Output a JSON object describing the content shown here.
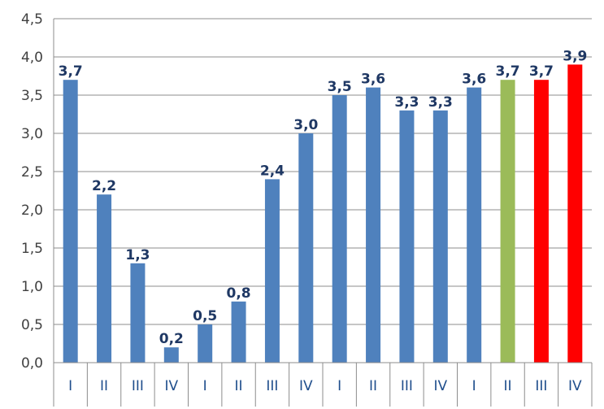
{
  "chart_data": {
    "type": "bar",
    "categories": [
      "I",
      "II",
      "III",
      "IV",
      "I",
      "II",
      "III",
      "IV",
      "I",
      "II",
      "III",
      "IV",
      "I",
      "II",
      "III",
      "IV"
    ],
    "values": [
      3.7,
      2.2,
      1.3,
      0.2,
      0.5,
      0.8,
      2.4,
      3.0,
      3.5,
      3.6,
      3.3,
      3.3,
      3.6,
      3.7,
      3.7,
      3.9
    ],
    "value_labels": [
      "3,7",
      "2,2",
      "1,3",
      "0,2",
      "0,5",
      "0,8",
      "2,4",
      "3,0",
      "3,5",
      "3,6",
      "3,3",
      "3,3",
      "3,6",
      "3,7",
      "3,7",
      "3,9"
    ],
    "bar_colors": [
      "#4f81bd",
      "#4f81bd",
      "#4f81bd",
      "#4f81bd",
      "#4f81bd",
      "#4f81bd",
      "#4f81bd",
      "#4f81bd",
      "#4f81bd",
      "#4f81bd",
      "#4f81bd",
      "#4f81bd",
      "#4f81bd",
      "#9bbb59",
      "#ff0000",
      "#ff0000"
    ],
    "yticks": [
      "0,0",
      "0,5",
      "1,0",
      "1,5",
      "2,0",
      "2,5",
      "3,0",
      "3,5",
      "4,0",
      "4,5"
    ],
    "ylim": [
      0,
      4.5
    ],
    "ystep": 0.5,
    "grid": true,
    "title": "",
    "xlabel": "",
    "ylabel": ""
  }
}
